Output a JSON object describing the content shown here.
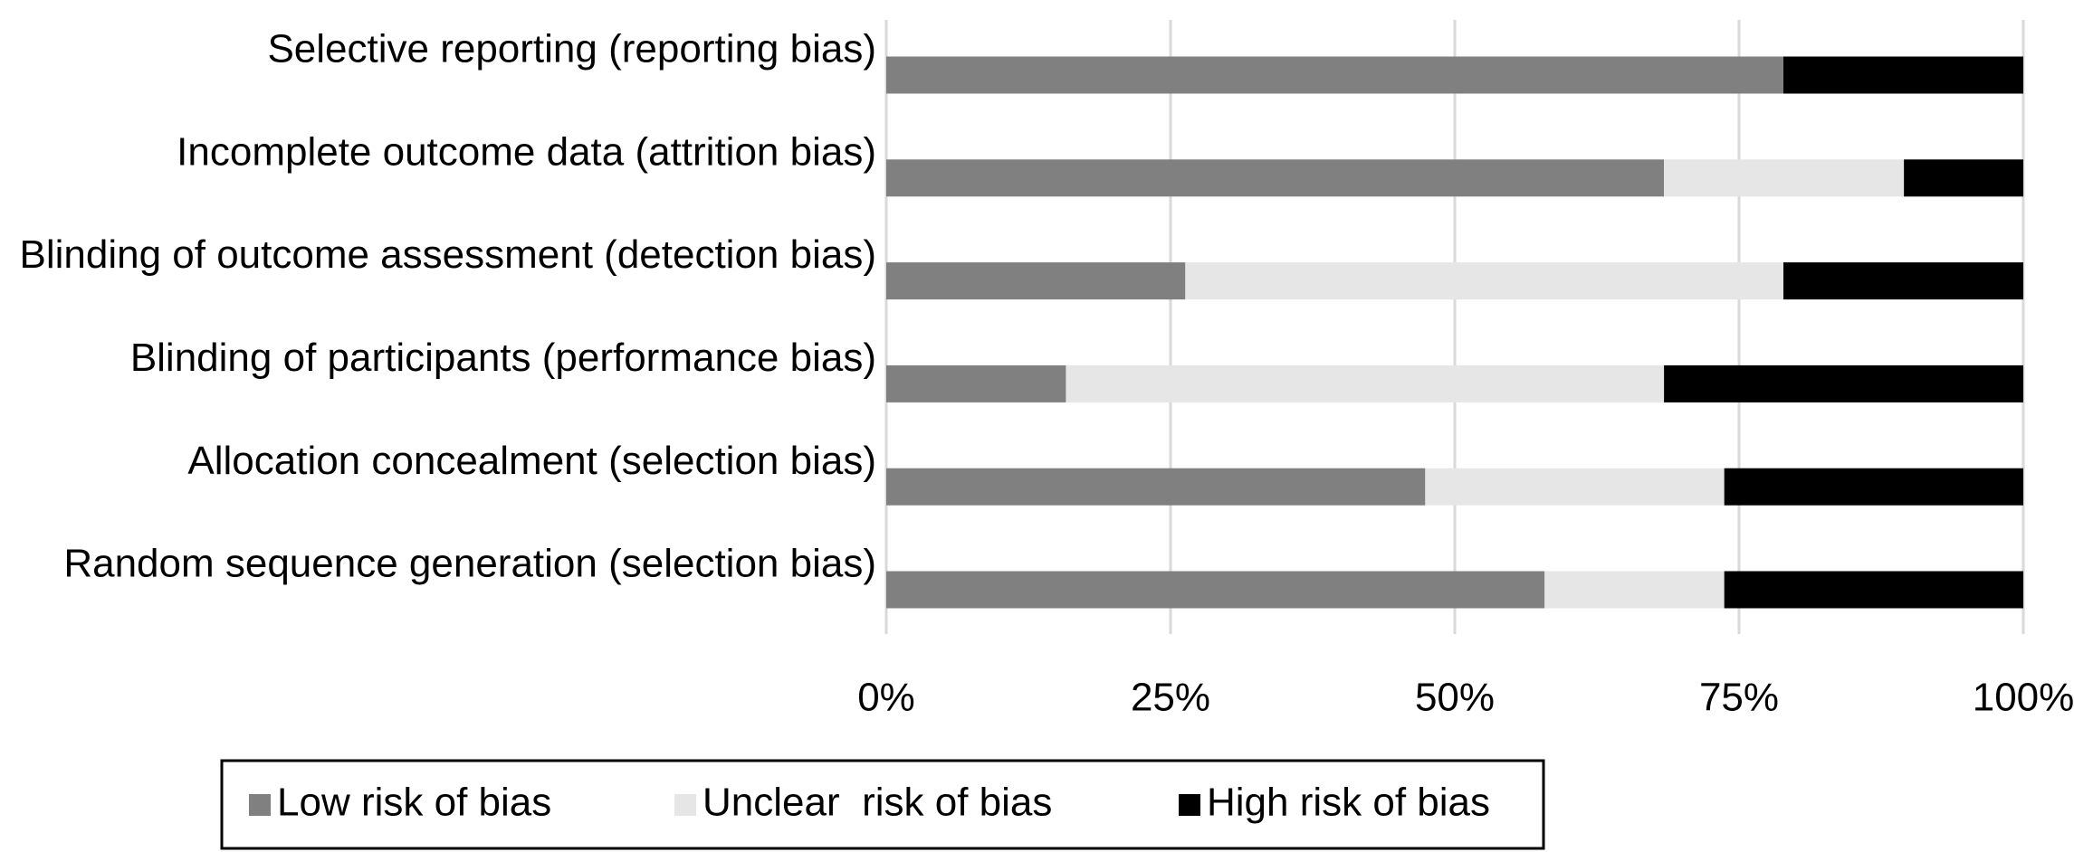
{
  "chart_data": {
    "type": "stacked-bar-horizontal",
    "categories": [
      "Selective reporting (reporting bias)",
      "Incomplete outcome data (attrition bias)",
      "Blinding of outcome assessment (detection bias)",
      "Blinding of participants (performance bias)",
      "Allocation concealment (selection bias)",
      "Random sequence generation (selection bias)"
    ],
    "series": [
      {
        "name": "Low risk of bias",
        "color": "#808080",
        "values": [
          78.9,
          68.4,
          26.3,
          15.8,
          47.4,
          57.9
        ]
      },
      {
        "name": "Unclear  risk of bias",
        "color": "#e6e6e6",
        "values": [
          0,
          21.1,
          52.6,
          52.6,
          26.3,
          15.8
        ]
      },
      {
        "name": "High risk of bias",
        "color": "#000000",
        "values": [
          21.1,
          10.5,
          21.1,
          31.6,
          26.3,
          26.3
        ]
      }
    ],
    "xlim": [
      0,
      100
    ],
    "xticks": [
      {
        "value": 0,
        "label": "0%"
      },
      {
        "value": 25,
        "label": "25%"
      },
      {
        "value": 50,
        "label": "50%"
      },
      {
        "value": 75,
        "label": "75%"
      },
      {
        "value": 100,
        "label": "100%"
      }
    ],
    "grid": true
  }
}
